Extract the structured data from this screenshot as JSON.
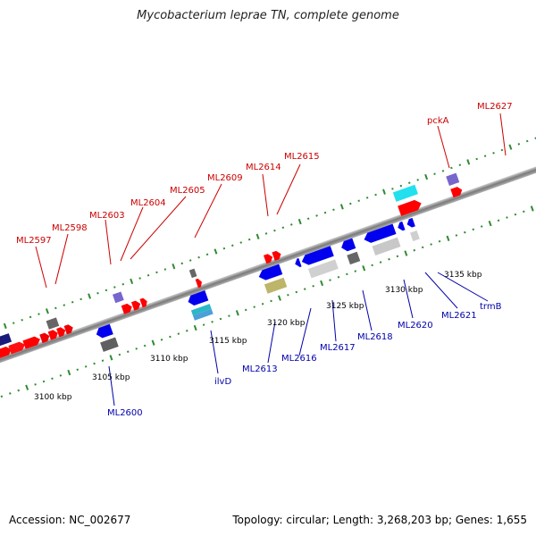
{
  "title": "Mycobacterium leprae TN, complete genome",
  "footer": {
    "accession": "Accession: NC_002677",
    "topology": "Topology: circular; Length: 3,268,203 bp; Genes: 1,655"
  },
  "colors": {
    "backbone": "#888888",
    "tick": "#2e8b2e",
    "forward_label": "#cc0000",
    "reverse_label": "#0000aa"
  },
  "scale_labels": [
    "3100 kbp",
    "3105 kbp",
    "3110 kbp",
    "3115 kbp",
    "3120 kbp",
    "3125 kbp",
    "3130 kbp",
    "3135 kbp"
  ],
  "forward_labels": [
    "ML2597",
    "ML2598",
    "ML2603",
    "ML2604",
    "ML2605",
    "ML2609",
    "ML2614",
    "ML2615",
    "pckA",
    "ML2627"
  ],
  "reverse_labels": [
    "ML2600",
    "ilvD",
    "ML2613",
    "ML2616",
    "ML2617",
    "ML2618",
    "ML2620",
    "ML2621",
    "trmB"
  ]
}
